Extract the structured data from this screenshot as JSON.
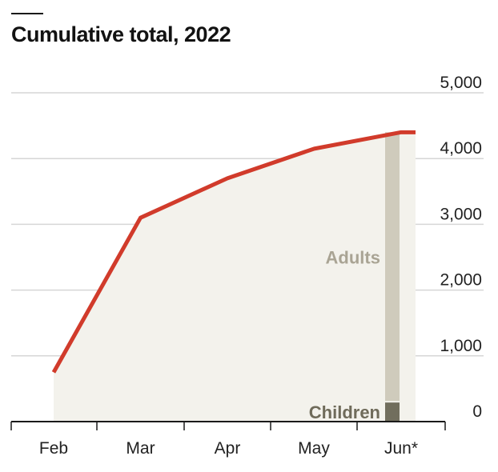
{
  "title": "Cumulative total, 2022",
  "chart_data": {
    "type": "area",
    "title": "Cumulative total, 2022",
    "x_tick_labels": [
      "Feb",
      "Mar",
      "Apr",
      "May",
      "Jun*"
    ],
    "series": [
      {
        "x": [
          "Feb",
          "Mar",
          "Apr",
          "May",
          "Jun*"
        ],
        "values": [
          750,
          3100,
          3700,
          4150,
          4400
        ]
      }
    ],
    "stacked_bar": {
      "category": "Jun*",
      "segments": [
        {
          "label": "Children",
          "value": 290
        },
        {
          "label": "Adults",
          "value": 4110
        }
      ]
    },
    "ylim": [
      0,
      5000
    ],
    "y_ticks": [
      0,
      1000,
      2000,
      3000,
      4000,
      5000
    ],
    "y_tick_labels": [
      "0",
      "1,000",
      "2,000",
      "3,000",
      "4,000",
      "5,000"
    ],
    "y_axis_side": "right",
    "grid": true,
    "colors": {
      "line": "#d13b2b",
      "area": "#f3f2ec",
      "grid": "#d6d6d6",
      "axis": "#1a1a1a",
      "adults": "#cfcbbc",
      "adults_label": "#a9a494",
      "children": "#716e5d",
      "children_label": "#6f6b5a"
    }
  }
}
